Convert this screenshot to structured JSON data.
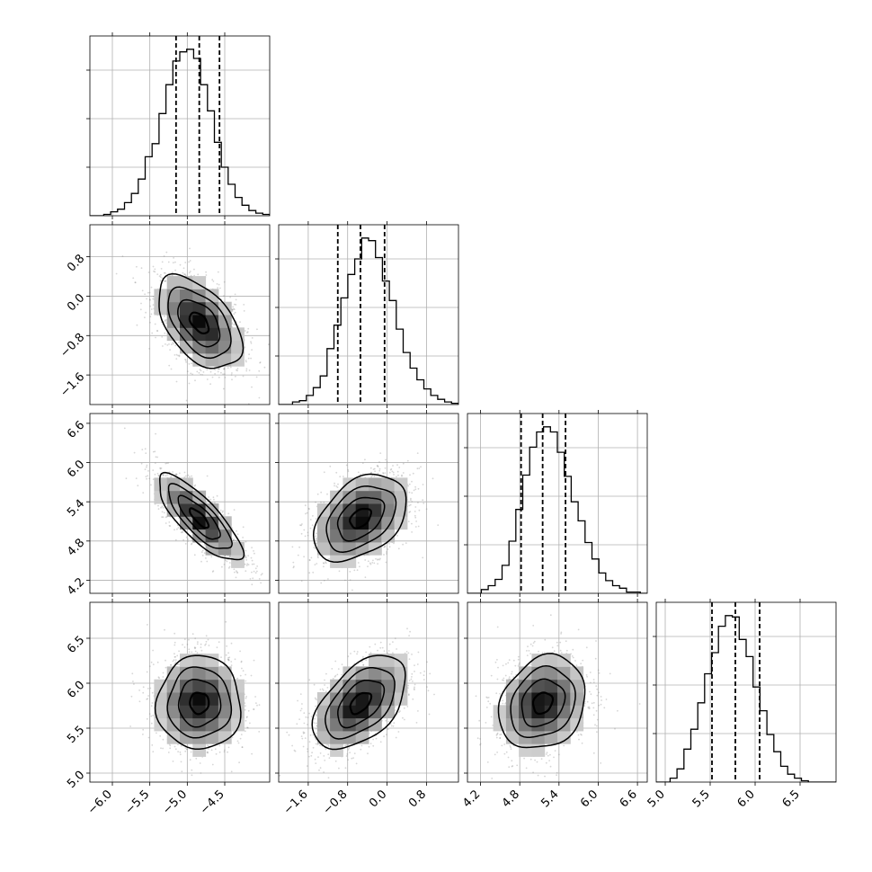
{
  "chart_data": {
    "type": "scatter",
    "subtype": "corner-plot",
    "title": "",
    "n_params": 4,
    "param_labels": [
      "",
      "",
      "",
      ""
    ],
    "params": [
      {
        "range": [
          -6.3,
          -3.9
        ],
        "ticks": [
          -6.0,
          -5.5,
          -5.0,
          -4.5
        ],
        "tick_labels": [
          "−6.0",
          "−5.5",
          "−5.0",
          "−4.5"
        ],
        "quantiles": [
          -5.15,
          -4.84,
          -4.57
        ],
        "mean": -4.84,
        "sd": 0.28
      },
      {
        "range": [
          -2.2,
          1.45
        ],
        "ticks": [
          -1.6,
          -0.8,
          0.0,
          0.8
        ],
        "tick_labels": [
          "−1.6",
          "−0.8",
          "0.0",
          "0.8"
        ],
        "quantiles": [
          -1.0,
          -0.54,
          -0.05
        ],
        "mean": -0.54,
        "sd": 0.47
      },
      {
        "range": [
          4.0,
          6.75
        ],
        "ticks": [
          4.2,
          4.8,
          5.4,
          6.0,
          6.6
        ],
        "tick_labels": [
          "4.2",
          "4.8",
          "5.4",
          "6.0",
          "6.6"
        ],
        "quantiles": [
          4.82,
          5.15,
          5.5
        ],
        "mean": 5.15,
        "sd": 0.33
      },
      {
        "range": [
          4.9,
          6.9
        ],
        "ticks": [
          5.0,
          5.5,
          6.0,
          6.5
        ],
        "tick_labels": [
          "5.0",
          "5.5",
          "6.0",
          "6.5"
        ],
        "quantiles": [
          5.52,
          5.78,
          6.05
        ],
        "mean": 5.78,
        "sd": 0.26
      }
    ],
    "correlations": [
      [
        1,
        -0.5,
        -0.8,
        0
      ],
      [
        -0.5,
        1,
        0.4,
        0.5
      ],
      [
        -0.8,
        0.4,
        1,
        0.2
      ],
      [
        0,
        0.5,
        0.2,
        1
      ]
    ],
    "histograms": [
      [
        0,
        0,
        1,
        3,
        5,
        10,
        17,
        28,
        45,
        55,
        78,
        100,
        118,
        125,
        127,
        120,
        100,
        80,
        56,
        37,
        24,
        14,
        8,
        4,
        2,
        1
      ],
      [
        0,
        0,
        2,
        3,
        7,
        13,
        22,
        43,
        61,
        82,
        100,
        112,
        128,
        126,
        113,
        95,
        80,
        58,
        40,
        28,
        19,
        12,
        7,
        4,
        2,
        1
      ],
      [
        0,
        0,
        3,
        6,
        11,
        22,
        41,
        66,
        93,
        115,
        127,
        131,
        127,
        111,
        92,
        72,
        57,
        40,
        27,
        16,
        10,
        6,
        4,
        1,
        1,
        0
      ],
      [
        0,
        0,
        3,
        10,
        25,
        40,
        60,
        82,
        98,
        118,
        126,
        125,
        108,
        95,
        72,
        54,
        36,
        23,
        12,
        6,
        3,
        1,
        0,
        0,
        0,
        0
      ]
    ],
    "grid": true,
    "legend": "none"
  }
}
